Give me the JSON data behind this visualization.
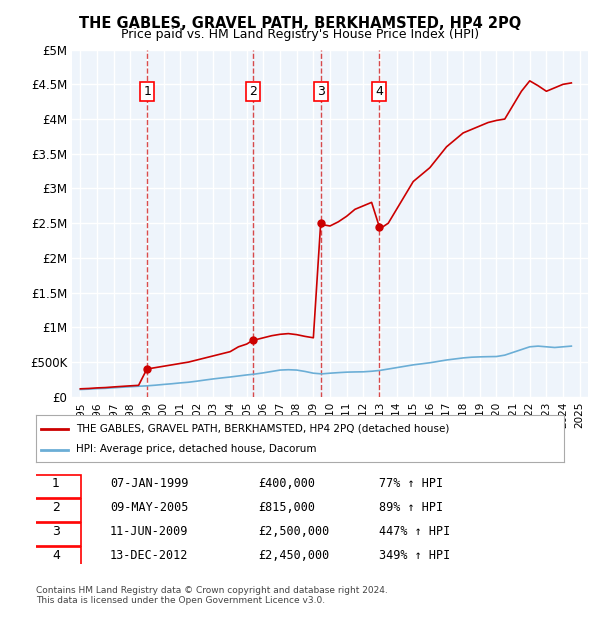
{
  "title": "THE GABLES, GRAVEL PATH, BERKHAMSTED, HP4 2PQ",
  "subtitle": "Price paid vs. HM Land Registry's House Price Index (HPI)",
  "ylabel": "",
  "background_color": "#ffffff",
  "plot_bg_color": "#eef4fb",
  "grid_color": "#ffffff",
  "ylim": [
    0,
    5000000
  ],
  "yticks": [
    0,
    500000,
    1000000,
    1500000,
    2000000,
    2500000,
    3000000,
    3500000,
    4000000,
    4500000,
    5000000
  ],
  "ytick_labels": [
    "£0",
    "£500K",
    "£1M",
    "£1.5M",
    "£2M",
    "£2.5M",
    "£3M",
    "£3.5M",
    "£4M",
    "£4.5M",
    "£5M"
  ],
  "xlim_start": 1994.5,
  "xlim_end": 2025.5,
  "xtick_years": [
    1995,
    1996,
    1997,
    1998,
    1999,
    2000,
    2001,
    2002,
    2003,
    2004,
    2005,
    2006,
    2007,
    2008,
    2009,
    2010,
    2011,
    2012,
    2013,
    2014,
    2015,
    2016,
    2017,
    2018,
    2019,
    2020,
    2021,
    2022,
    2023,
    2024,
    2025
  ],
  "sale_dates": [
    1999.03,
    2005.36,
    2009.44,
    2012.96
  ],
  "sale_prices": [
    400000,
    815000,
    2500000,
    2450000
  ],
  "sale_labels": [
    "1",
    "2",
    "3",
    "4"
  ],
  "hpi_color": "#6baed6",
  "price_color": "#cc0000",
  "dashed_color": "#cc0000",
  "legend_entries": [
    "THE GABLES, GRAVEL PATH, BERKHAMSTED, HP4 2PQ (detached house)",
    "HPI: Average price, detached house, Dacorum"
  ],
  "table_data": [
    [
      "1",
      "07-JAN-1999",
      "£400,000",
      "77% ↑ HPI"
    ],
    [
      "2",
      "09-MAY-2005",
      "£815,000",
      "89% ↑ HPI"
    ],
    [
      "3",
      "11-JUN-2009",
      "£2,500,000",
      "447% ↑ HPI"
    ],
    [
      "4",
      "13-DEC-2012",
      "£2,450,000",
      "349% ↑ HPI"
    ]
  ],
  "footer": "Contains HM Land Registry data © Crown copyright and database right 2024.\nThis data is licensed under the Open Government Licence v3.0.",
  "hpi_x": [
    1995.0,
    1995.5,
    1996.0,
    1996.5,
    1997.0,
    1997.5,
    1998.0,
    1998.5,
    1999.0,
    1999.5,
    2000.0,
    2000.5,
    2001.0,
    2001.5,
    2002.0,
    2002.5,
    2003.0,
    2003.5,
    2004.0,
    2004.5,
    2005.0,
    2005.5,
    2006.0,
    2006.5,
    2007.0,
    2007.5,
    2008.0,
    2008.5,
    2009.0,
    2009.5,
    2010.0,
    2010.5,
    2011.0,
    2011.5,
    2012.0,
    2012.5,
    2013.0,
    2013.5,
    2014.0,
    2014.5,
    2015.0,
    2015.5,
    2016.0,
    2016.5,
    2017.0,
    2017.5,
    2018.0,
    2018.5,
    2019.0,
    2019.5,
    2020.0,
    2020.5,
    2021.0,
    2021.5,
    2022.0,
    2022.5,
    2023.0,
    2023.5,
    2024.0,
    2024.5
  ],
  "hpi_y": [
    105000,
    110000,
    118000,
    122000,
    130000,
    138000,
    145000,
    152000,
    158000,
    167000,
    178000,
    188000,
    200000,
    210000,
    225000,
    242000,
    258000,
    272000,
    285000,
    300000,
    315000,
    328000,
    345000,
    365000,
    385000,
    390000,
    385000,
    365000,
    340000,
    330000,
    340000,
    348000,
    355000,
    358000,
    360000,
    368000,
    380000,
    400000,
    420000,
    440000,
    460000,
    475000,
    490000,
    510000,
    530000,
    545000,
    560000,
    570000,
    575000,
    578000,
    580000,
    600000,
    640000,
    680000,
    720000,
    730000,
    720000,
    710000,
    720000,
    730000
  ],
  "price_x": [
    1995.0,
    1995.5,
    1996.0,
    1996.5,
    1997.0,
    1997.5,
    1998.0,
    1998.5,
    1999.0,
    1999.5,
    2000.0,
    2000.5,
    2001.0,
    2001.5,
    2002.0,
    2002.5,
    2003.0,
    2003.5,
    2004.0,
    2004.5,
    2005.0,
    2005.36,
    2005.5,
    2006.0,
    2006.5,
    2007.0,
    2007.5,
    2008.0,
    2008.5,
    2009.0,
    2009.44,
    2009.5,
    2010.0,
    2010.5,
    2011.0,
    2011.5,
    2012.0,
    2012.5,
    2012.96,
    2013.0,
    2013.5,
    2014.0,
    2014.5,
    2015.0,
    2015.5,
    2016.0,
    2016.5,
    2017.0,
    2017.5,
    2018.0,
    2018.5,
    2019.0,
    2019.5,
    2020.0,
    2020.5,
    2021.0,
    2021.5,
    2022.0,
    2022.5,
    2023.0,
    2023.5,
    2024.0,
    2024.5
  ],
  "price_y": [
    115000,
    120000,
    128000,
    133000,
    142000,
    150000,
    158000,
    165000,
    400000,
    420000,
    440000,
    460000,
    480000,
    500000,
    530000,
    560000,
    590000,
    620000,
    650000,
    720000,
    760000,
    815000,
    820000,
    850000,
    880000,
    900000,
    910000,
    895000,
    870000,
    850000,
    2500000,
    2480000,
    2460000,
    2520000,
    2600000,
    2700000,
    2750000,
    2800000,
    2450000,
    2420000,
    2500000,
    2700000,
    2900000,
    3100000,
    3200000,
    3300000,
    3450000,
    3600000,
    3700000,
    3800000,
    3850000,
    3900000,
    3950000,
    3980000,
    4000000,
    4200000,
    4400000,
    4550000,
    4480000,
    4400000,
    4450000,
    4500000,
    4520000
  ]
}
